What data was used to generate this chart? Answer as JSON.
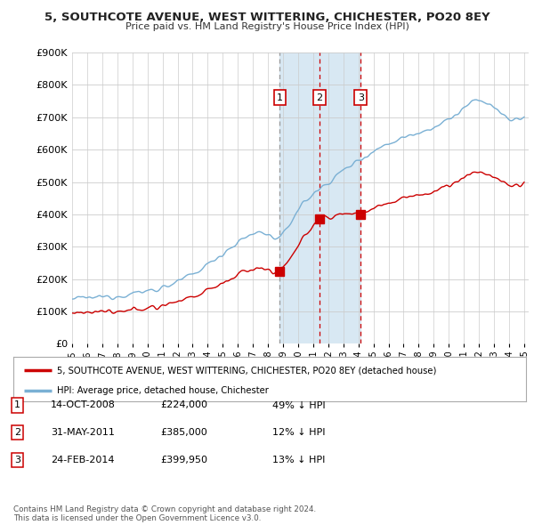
{
  "title": "5, SOUTHCOTE AVENUE, WEST WITTERING, CHICHESTER, PO20 8EY",
  "subtitle": "Price paid vs. HM Land Registry's House Price Index (HPI)",
  "ylim": [
    0,
    900000
  ],
  "yticks": [
    0,
    100000,
    200000,
    300000,
    400000,
    500000,
    600000,
    700000,
    800000,
    900000
  ],
  "ytick_labels": [
    "£0",
    "£100K",
    "£200K",
    "£300K",
    "£400K",
    "£500K",
    "£600K",
    "£700K",
    "£800K",
    "£900K"
  ],
  "year_start": 1995,
  "year_end": 2025,
  "sale_color": "#cc0000",
  "hpi_color": "#7ab0d4",
  "shade_color": "#d8e8f3",
  "vline1_color": "#999999",
  "vline23_color": "#cc0000",
  "transaction_years": [
    2008.79,
    2011.42,
    2014.15
  ],
  "transaction_prices": [
    224000,
    385000,
    399950
  ],
  "transaction_labels": [
    "1",
    "2",
    "3"
  ],
  "legend_sale_label": "5, SOUTHCOTE AVENUE, WEST WITTERING, CHICHESTER, PO20 8EY (detached house)",
  "legend_hpi_label": "HPI: Average price, detached house, Chichester",
  "table_rows": [
    [
      "1",
      "14-OCT-2008",
      "£224,000",
      "49% ↓ HPI"
    ],
    [
      "2",
      "31-MAY-2011",
      "£385,000",
      "12% ↓ HPI"
    ],
    [
      "3",
      "24-FEB-2014",
      "£399,950",
      "13% ↓ HPI"
    ]
  ],
  "footer_text": "Contains HM Land Registry data © Crown copyright and database right 2024.\nThis data is licensed under the Open Government Licence v3.0.",
  "background_color": "#ffffff",
  "grid_color": "#cccccc"
}
